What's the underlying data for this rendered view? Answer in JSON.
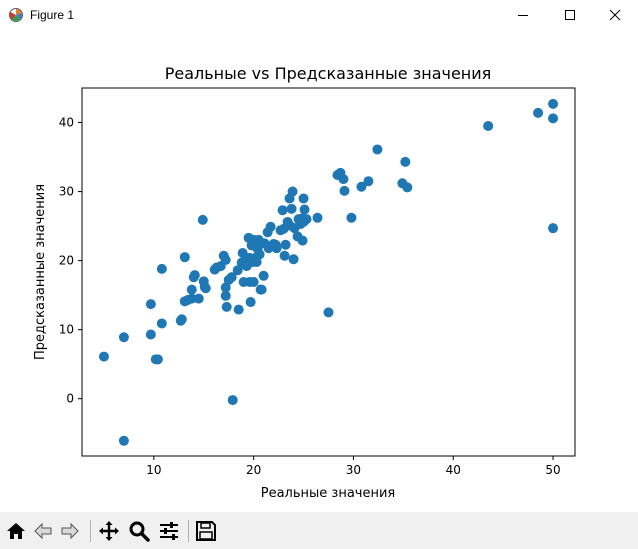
{
  "window": {
    "title": "Figure 1",
    "icons": {
      "app": "matplotlib-figure-icon",
      "minimize": "minimize-icon",
      "maximize": "maximize-icon",
      "close": "close-icon"
    }
  },
  "toolbar": {
    "buttons": [
      {
        "name": "home-button",
        "icon": "home-icon"
      },
      {
        "name": "back-button",
        "icon": "arrow-left-icon"
      },
      {
        "name": "forward-button",
        "icon": "arrow-right-icon"
      },
      {
        "name": "pan-button",
        "icon": "move-icon"
      },
      {
        "name": "zoom-button",
        "icon": "magnifier-icon"
      },
      {
        "name": "configure-subplots-button",
        "icon": "sliders-icon"
      },
      {
        "name": "save-button",
        "icon": "floppy-disk-icon"
      }
    ]
  },
  "chart_data": {
    "type": "scatter",
    "title": "Реальные vs Предсказанные значения",
    "xlabel": "Реальные значения",
    "ylabel": "Предсказанные значения",
    "xlim": [
      2.8,
      52.2
    ],
    "ylim": [
      -8.3,
      45.0
    ],
    "xticks": [
      10,
      20,
      30,
      40,
      50
    ],
    "yticks": [
      0,
      10,
      20,
      30,
      40
    ],
    "grid": false,
    "marker_color": "#1f77b4",
    "series": [
      {
        "x": [
          5.0,
          7.0,
          7.0,
          9.7,
          9.7,
          10.2,
          10.4,
          10.8,
          10.8,
          12.7,
          12.8,
          13.1,
          13.1,
          13.4,
          13.8,
          13.8,
          14.0,
          14.1,
          14.5,
          14.9,
          15.0,
          15.1,
          15.2,
          16.1,
          16.3,
          16.7,
          17.0,
          17.2,
          17.2,
          17.2,
          17.3,
          17.5,
          17.8,
          17.9,
          18.4,
          18.5,
          18.8,
          18.9,
          19.0,
          19.2,
          19.3,
          19.5,
          19.6,
          19.6,
          19.7,
          19.8,
          19.9,
          20.0,
          20.0,
          20.2,
          20.3,
          20.4,
          20.5,
          20.6,
          20.7,
          20.8,
          21.0,
          21.1,
          21.4,
          21.5,
          21.7,
          22.0,
          22.2,
          22.3,
          22.7,
          22.9,
          23.0,
          23.1,
          23.2,
          23.4,
          23.6,
          23.6,
          23.8,
          23.9,
          24.0,
          24.1,
          24.4,
          24.5,
          24.7,
          24.8,
          24.9,
          25.0,
          25.0,
          25.1,
          25.3,
          26.4,
          27.5,
          28.4,
          28.7,
          29.0,
          29.1,
          29.8,
          30.8,
          31.5,
          32.4,
          34.9,
          35.2,
          35.4,
          43.5,
          48.5,
          50.0,
          50.0,
          50.0
        ],
        "y": [
          6.1,
          8.9,
          -6.1,
          13.7,
          9.3,
          5.7,
          5.7,
          10.9,
          18.8,
          11.3,
          11.5,
          14.1,
          20.5,
          14.3,
          15.8,
          14.5,
          17.6,
          17.9,
          14.5,
          25.9,
          17.0,
          16.2,
          16.0,
          18.7,
          19.0,
          19.2,
          20.7,
          20.1,
          16.1,
          14.9,
          13.3,
          17.2,
          17.6,
          -0.2,
          18.6,
          12.9,
          19.7,
          21.1,
          16.9,
          20.0,
          19.2,
          23.3,
          20.4,
          16.9,
          14.0,
          22.2,
          19.8,
          16.9,
          23.0,
          20.4,
          19.8,
          21.7,
          23.0,
          20.9,
          15.8,
          15.8,
          17.8,
          22.5,
          24.1,
          21.8,
          24.9,
          22.4,
          22.3,
          21.8,
          24.4,
          27.3,
          24.6,
          20.7,
          22.3,
          25.6,
          25.1,
          29.0,
          27.5,
          30.0,
          20.2,
          24.7,
          23.5,
          26.0,
          25.3,
          26.1,
          22.9,
          29.0,
          25.6,
          27.4,
          26.0,
          26.2,
          12.5,
          32.4,
          32.7,
          31.8,
          30.1,
          26.2,
          30.7,
          31.5,
          36.1,
          31.2,
          34.3,
          30.6,
          39.5,
          41.4,
          42.7,
          40.6,
          24.7
        ]
      }
    ]
  }
}
